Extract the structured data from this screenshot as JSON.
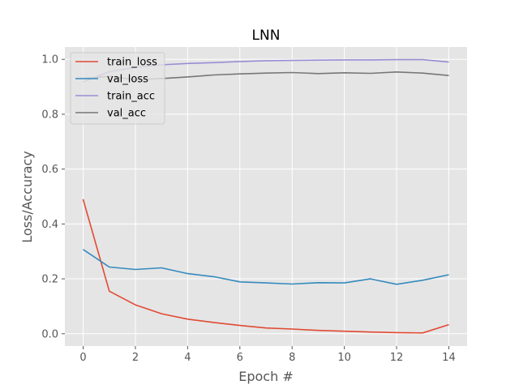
{
  "chart_data": {
    "type": "line",
    "title": "LNN",
    "xlabel": "Epoch #",
    "ylabel": "Loss/Accuracy",
    "x": [
      0,
      1,
      2,
      3,
      4,
      5,
      6,
      7,
      8,
      9,
      10,
      11,
      12,
      13,
      14
    ],
    "xlim": [
      -0.7,
      14.7
    ],
    "ylim": [
      -0.045,
      1.045
    ],
    "xticks": [
      0,
      2,
      4,
      6,
      8,
      10,
      12,
      14
    ],
    "yticks": [
      0.0,
      0.2,
      0.4,
      0.6,
      0.8,
      1.0
    ],
    "grid": true,
    "legend_position": "top-left",
    "style": "ggplot",
    "series": [
      {
        "name": "train_loss",
        "color": "#E24A33",
        "values": [
          0.49,
          0.155,
          0.105,
          0.073,
          0.053,
          0.041,
          0.03,
          0.021,
          0.017,
          0.012,
          0.009,
          0.006,
          0.004,
          0.003,
          0.033
        ]
      },
      {
        "name": "val_loss",
        "color": "#348ABD",
        "values": [
          0.307,
          0.243,
          0.234,
          0.24,
          0.219,
          0.208,
          0.189,
          0.185,
          0.181,
          0.186,
          0.185,
          0.2,
          0.18,
          0.195,
          0.215
        ]
      },
      {
        "name": "train_acc",
        "color": "#988ED5",
        "values": [
          0.918,
          0.955,
          0.971,
          0.98,
          0.985,
          0.988,
          0.992,
          0.995,
          0.996,
          0.997,
          0.998,
          0.998,
          0.999,
          0.999,
          0.99
        ]
      },
      {
        "name": "val_acc",
        "color": "#777777",
        "values": [
          0.93,
          0.938,
          0.926,
          0.93,
          0.936,
          0.943,
          0.947,
          0.95,
          0.952,
          0.948,
          0.951,
          0.949,
          0.954,
          0.95,
          0.941
        ]
      }
    ]
  }
}
